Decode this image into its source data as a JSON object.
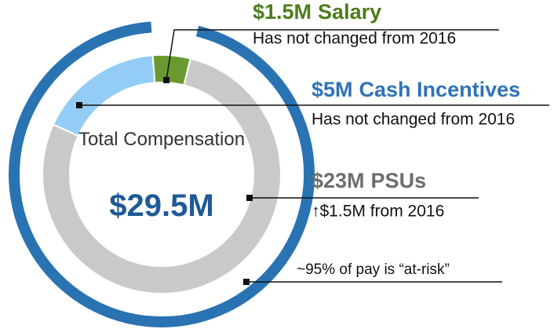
{
  "chart_data": {
    "type": "donut",
    "categories": [
      "Salary",
      "Cash Incentives",
      "PSUs"
    ],
    "values": [
      1.5,
      5,
      23
    ],
    "value_labels": [
      "$1.5M",
      "$5M",
      "$23M"
    ],
    "colors": [
      "#6a9a2f",
      "#93cdf5",
      "#c9c9c9"
    ],
    "label_colors": [
      "#4d7d1c",
      "#2e74b5",
      "#6d6d6d"
    ],
    "notes": [
      "Has not changed from 2016",
      "Has not changed from 2016",
      "↑$1.5M from 2016"
    ],
    "center_label": "Total Compensation",
    "total": {
      "value": 29.5,
      "label": "$29.5M"
    },
    "at_risk": {
      "value": 95,
      "label": "~95% of pay is “at-risk”",
      "color": "#2a73b3"
    }
  }
}
